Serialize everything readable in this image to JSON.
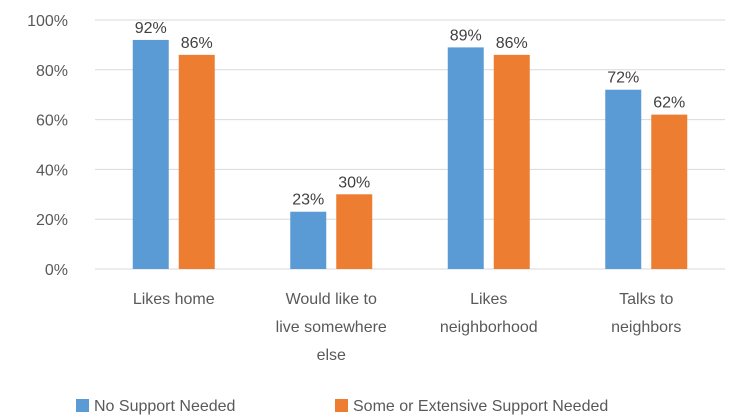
{
  "chart_data": {
    "type": "bar",
    "categories": [
      [
        "Likes home"
      ],
      [
        "Would like to",
        "live somewhere",
        "else"
      ],
      [
        "Likes",
        "neighborhood"
      ],
      [
        "Talks to",
        "neighbors"
      ]
    ],
    "series": [
      {
        "name": "No Support Needed",
        "values": [
          92,
          23,
          89,
          72
        ],
        "labels": [
          "92%",
          "23%",
          "89%",
          "72%"
        ],
        "color": "#5b9bd5"
      },
      {
        "name": "Some or Extensive Support Needed",
        "values": [
          86,
          30,
          86,
          62
        ],
        "labels": [
          "86%",
          "30%",
          "86%",
          "62%"
        ],
        "color": "#ed7d31"
      }
    ],
    "yticks": [
      0,
      20,
      40,
      60,
      80,
      100
    ],
    "ytick_labels": [
      "0%",
      "20%",
      "40%",
      "60%",
      "80%",
      "100%"
    ],
    "ylim": [
      0,
      100
    ],
    "grid": true,
    "legend_position": "bottom"
  }
}
